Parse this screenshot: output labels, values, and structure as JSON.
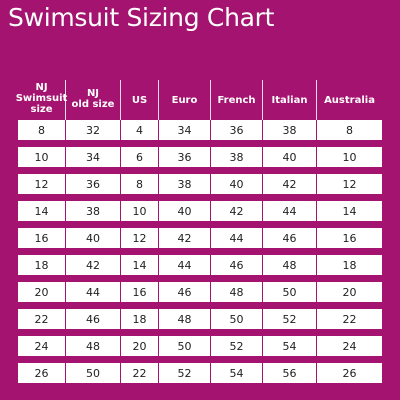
{
  "title": "Swimsuit Sizing Chart",
  "colors": {
    "background": "#a3136f",
    "header_text": "#ffffff",
    "row_background": "#ffffff",
    "cell_text": "#222222"
  },
  "table": {
    "headers": [
      [
        "NJ",
        "Swimsuit",
        "size"
      ],
      [
        "NJ",
        "old size"
      ],
      [
        "US"
      ],
      [
        "Euro"
      ],
      [
        "French"
      ],
      [
        "Italian"
      ],
      [
        "Australia"
      ]
    ],
    "rows": [
      [
        "8",
        "32",
        "4",
        "34",
        "36",
        "38",
        "8"
      ],
      [
        "10",
        "34",
        "6",
        "36",
        "38",
        "40",
        "10"
      ],
      [
        "12",
        "36",
        "8",
        "38",
        "40",
        "42",
        "12"
      ],
      [
        "14",
        "38",
        "10",
        "40",
        "42",
        "44",
        "14"
      ],
      [
        "16",
        "40",
        "12",
        "42",
        "44",
        "46",
        "16"
      ],
      [
        "18",
        "42",
        "14",
        "44",
        "46",
        "48",
        "18"
      ],
      [
        "20",
        "44",
        "16",
        "46",
        "48",
        "50",
        "20"
      ],
      [
        "22",
        "46",
        "18",
        "48",
        "50",
        "52",
        "22"
      ],
      [
        "24",
        "48",
        "20",
        "50",
        "52",
        "54",
        "24"
      ],
      [
        "26",
        "50",
        "22",
        "52",
        "54",
        "56",
        "26"
      ]
    ]
  }
}
